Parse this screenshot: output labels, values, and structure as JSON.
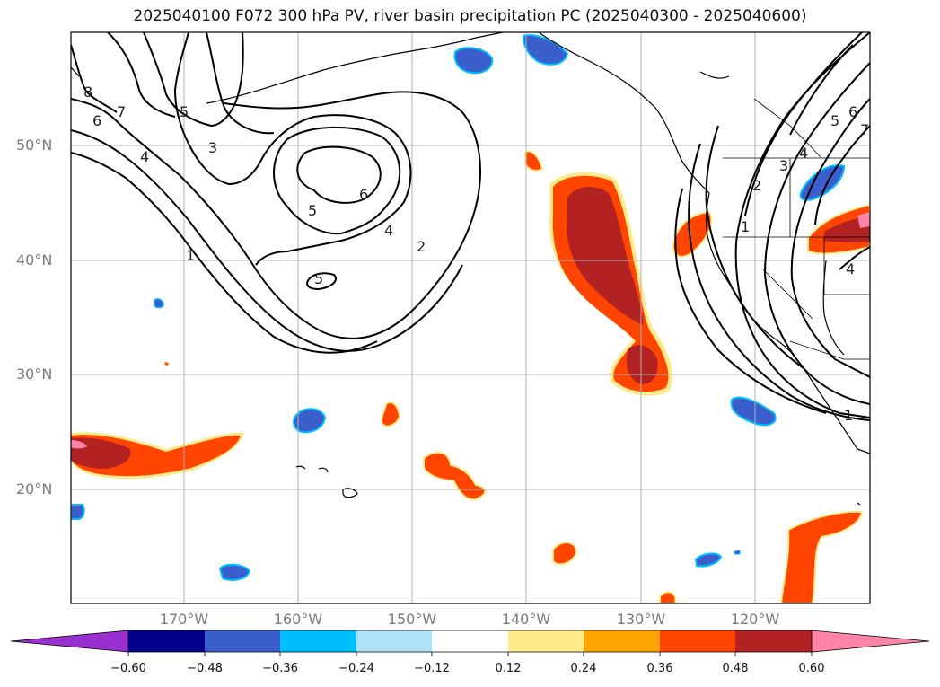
{
  "title": "2025040100 F072 300 hPa PV, river basin precipitation PC (2025040300 - 2025040600)",
  "lat_labels": [
    "50°N",
    "40°N",
    "30°N",
    "20°N"
  ],
  "lon_labels": [
    "170°W",
    "160°W",
    "150°W",
    "140°W",
    "130°W",
    "120°W"
  ],
  "pv_contour_labels": [
    "8",
    "7",
    "6",
    "5",
    "4",
    "3",
    "1",
    "5",
    "6",
    "5",
    "4",
    "2",
    "1",
    "2",
    "3",
    "4",
    "5",
    "6",
    "7",
    "4",
    "1"
  ],
  "colorbar": {
    "colors": [
      "#9b30d0",
      "#00008b",
      "#3a5fcd",
      "#00bfff",
      "#afe1fa",
      "#ffffff",
      "#ffeb8a",
      "#ffa500",
      "#ff4500",
      "#b22222",
      "#ff85a8"
    ],
    "tick_labels": [
      "−0.60",
      "−0.48",
      "−0.36",
      "−0.24",
      "−0.12",
      "0.12",
      "0.24",
      "0.36",
      "0.48",
      "0.60"
    ]
  },
  "colors": {
    "gridline": "#b0b0b0",
    "coastline": "#000000",
    "contour": "#000000",
    "axis_label": "#7a7a7a"
  }
}
